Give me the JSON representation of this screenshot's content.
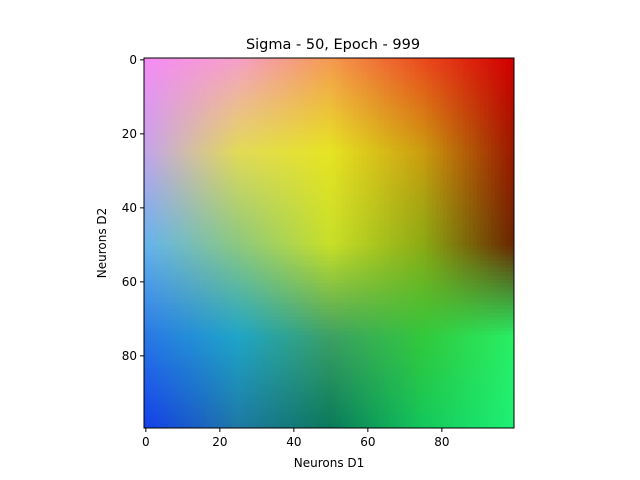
{
  "chart_data": {
    "type": "heatmap",
    "title": "Sigma - 50, Epoch - 999",
    "xlabel": "Neurons D1",
    "ylabel": "Neurons D2",
    "grid_size": [
      100,
      100
    ],
    "xlim": [
      0,
      99
    ],
    "ylim": [
      99,
      0
    ],
    "x_ticks": [
      0,
      20,
      40,
      60,
      80
    ],
    "y_ticks": [
      0,
      20,
      40,
      60,
      80
    ],
    "grid": false,
    "legend": "none",
    "color_anchors": [
      {
        "x": 0,
        "y": 0,
        "color": "#f58cf5"
      },
      {
        "x": 25,
        "y": 0,
        "color": "#f5a0c8"
      },
      {
        "x": 50,
        "y": 0,
        "color": "#f59a50"
      },
      {
        "x": 75,
        "y": 0,
        "color": "#eb4a1e"
      },
      {
        "x": 99,
        "y": 0,
        "color": "#d20000"
      },
      {
        "x": 0,
        "y": 25,
        "color": "#c4a4ec"
      },
      {
        "x": 25,
        "y": 25,
        "color": "#e2da58"
      },
      {
        "x": 50,
        "y": 25,
        "color": "#e6e423"
      },
      {
        "x": 75,
        "y": 25,
        "color": "#cc9c0f"
      },
      {
        "x": 99,
        "y": 25,
        "color": "#9a1b00"
      },
      {
        "x": 0,
        "y": 50,
        "color": "#64b4ee"
      },
      {
        "x": 25,
        "y": 50,
        "color": "#8cc880"
      },
      {
        "x": 50,
        "y": 50,
        "color": "#c8df28"
      },
      {
        "x": 75,
        "y": 50,
        "color": "#8caa14"
      },
      {
        "x": 99,
        "y": 50,
        "color": "#6a2800"
      },
      {
        "x": 0,
        "y": 75,
        "color": "#2878e6"
      },
      {
        "x": 25,
        "y": 75,
        "color": "#1ea5c8"
      },
      {
        "x": 50,
        "y": 75,
        "color": "#3ca064"
      },
      {
        "x": 75,
        "y": 75,
        "color": "#32c83c"
      },
      {
        "x": 99,
        "y": 75,
        "color": "#28ee64"
      },
      {
        "x": 0,
        "y": 99,
        "color": "#1441eb"
      },
      {
        "x": 25,
        "y": 99,
        "color": "#1e7aa5"
      },
      {
        "x": 50,
        "y": 99,
        "color": "#0a7a5a"
      },
      {
        "x": 75,
        "y": 99,
        "color": "#14c85a"
      },
      {
        "x": 99,
        "y": 99,
        "color": "#1ef073"
      }
    ]
  }
}
